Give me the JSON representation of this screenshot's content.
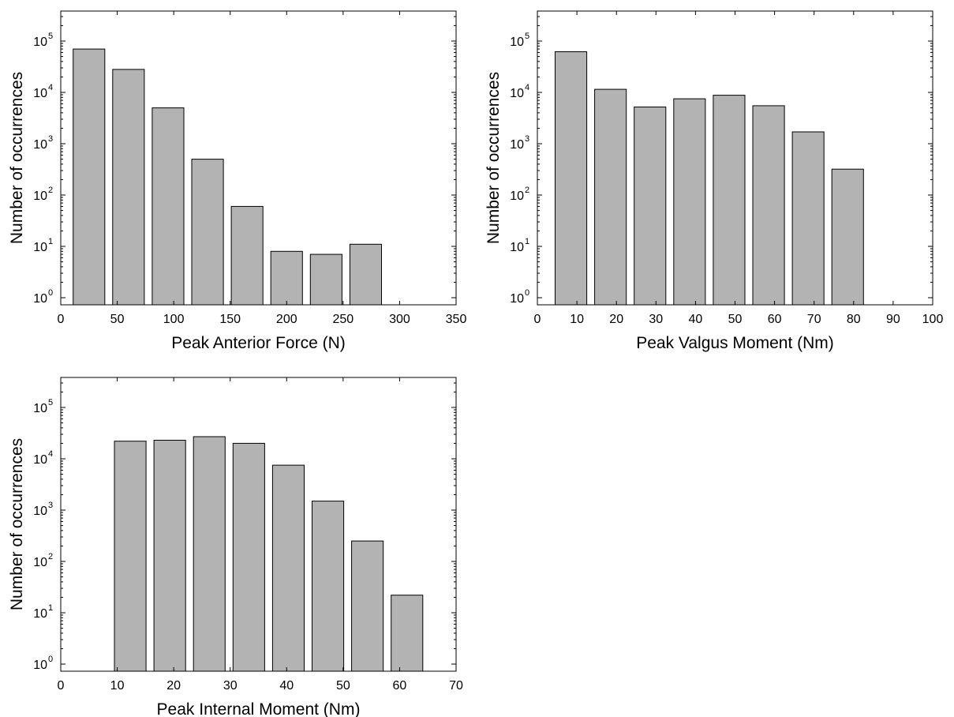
{
  "chart_data": [
    {
      "type": "bar",
      "y_scale": "log",
      "x_ticks": [
        0,
        50,
        100,
        150,
        200,
        250,
        300,
        350
      ],
      "y_ticks": [
        {
          "base": "10",
          "exp": "0"
        },
        {
          "base": "10",
          "exp": "1"
        },
        {
          "base": "10",
          "exp": "2"
        },
        {
          "base": "10",
          "exp": "3"
        },
        {
          "base": "10",
          "exp": "4"
        },
        {
          "base": "10",
          "exp": "5"
        }
      ],
      "xlabel": "Peak Anterior Force (N)",
      "ylabel": "Number of occurrences",
      "xlim": [
        0,
        350
      ],
      "bar_width": 28,
      "x": [
        25,
        60,
        95,
        130,
        165,
        200,
        235,
        270
      ],
      "values": [
        70000,
        28000,
        5000,
        500,
        60,
        8,
        7,
        11
      ],
      "color": "#b3b3b3",
      "grid": false
    },
    {
      "type": "bar",
      "y_scale": "log",
      "x_ticks": [
        0,
        10,
        20,
        30,
        40,
        50,
        60,
        70,
        80,
        90,
        100
      ],
      "y_ticks": [
        {
          "base": "10",
          "exp": "0"
        },
        {
          "base": "10",
          "exp": "1"
        },
        {
          "base": "10",
          "exp": "2"
        },
        {
          "base": "10",
          "exp": "3"
        },
        {
          "base": "10",
          "exp": "4"
        },
        {
          "base": "10",
          "exp": "5"
        }
      ],
      "xlabel": "Peak Valgus Moment (Nm)",
      "ylabel": "Number of occurrences",
      "xlim": [
        0,
        100
      ],
      "bar_width": 8,
      "x": [
        8.5,
        18.5,
        28.5,
        38.5,
        48.5,
        58.5,
        68.5,
        78.5
      ],
      "values": [
        62000,
        11500,
        5200,
        7500,
        8800,
        5500,
        1700,
        320
      ],
      "color": "#b3b3b3",
      "grid": false
    },
    {
      "type": "bar",
      "y_scale": "log",
      "x_ticks": [
        0,
        10,
        20,
        30,
        40,
        50,
        60,
        70
      ],
      "y_ticks": [
        {
          "base": "10",
          "exp": "0"
        },
        {
          "base": "10",
          "exp": "1"
        },
        {
          "base": "10",
          "exp": "2"
        },
        {
          "base": "10",
          "exp": "3"
        },
        {
          "base": "10",
          "exp": "4"
        },
        {
          "base": "10",
          "exp": "5"
        }
      ],
      "xlabel": "Peak Internal Moment (Nm)",
      "ylabel": "Number of occurrences",
      "xlim": [
        0,
        70
      ],
      "bar_width": 5.6,
      "x": [
        12.3,
        19.3,
        26.3,
        33.3,
        40.3,
        47.3,
        54.3,
        61.3
      ],
      "values": [
        22000,
        23000,
        27000,
        20000,
        7500,
        1500,
        250,
        22
      ],
      "color": "#b3b3b3",
      "grid": false
    }
  ]
}
